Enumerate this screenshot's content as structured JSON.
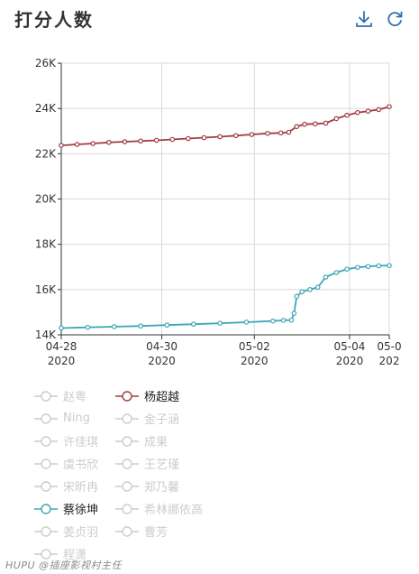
{
  "header": {
    "title": "打分人数",
    "download_icon": "download-icon",
    "refresh_icon": "refresh-icon"
  },
  "chart_data": {
    "type": "line",
    "title": "打分人数",
    "ylim": [
      14000,
      26000
    ],
    "y_ticks": [
      14000,
      16000,
      18000,
      20000,
      22000,
      24000,
      26000
    ],
    "y_tick_labels": [
      "14K",
      "16K",
      "18K",
      "20K",
      "22K",
      "24K",
      "26K"
    ],
    "xlim": [
      0,
      6.2
    ],
    "x_ticks": [
      0,
      1.9,
      3.65,
      5.45,
      6.2
    ],
    "x_tick_labels": [
      {
        "md": "04-28",
        "year": "2020"
      },
      {
        "md": "04-30",
        "year": "2020"
      },
      {
        "md": "05-02",
        "year": "2020"
      },
      {
        "md": "05-04",
        "year": "2020"
      },
      {
        "md": "05-0",
        "year": "202"
      }
    ],
    "grid": true,
    "series": [
      {
        "name": "杨超越",
        "color": "#a23b44",
        "x": [
          0,
          0.3,
          0.6,
          0.9,
          1.2,
          1.5,
          1.8,
          2.1,
          2.4,
          2.7,
          3.0,
          3.3,
          3.6,
          3.9,
          4.15,
          4.3,
          4.45,
          4.6,
          4.8,
          5.0,
          5.2,
          5.4,
          5.6,
          5.8,
          6.0,
          6.2
        ],
        "values": [
          22370,
          22410,
          22450,
          22500,
          22530,
          22560,
          22590,
          22630,
          22670,
          22710,
          22750,
          22800,
          22850,
          22900,
          22920,
          22950,
          23200,
          23300,
          23320,
          23350,
          23550,
          23700,
          23820,
          23880,
          23950,
          24080
        ]
      },
      {
        "name": "蔡徐坤",
        "color": "#3ea7b6",
        "x": [
          0,
          0.5,
          1.0,
          1.5,
          2.0,
          2.5,
          3.0,
          3.5,
          4.0,
          4.2,
          4.35,
          4.4,
          4.45,
          4.55,
          4.7,
          4.85,
          5.0,
          5.2,
          5.4,
          5.6,
          5.8,
          6.0,
          6.2
        ],
        "values": [
          14300,
          14330,
          14360,
          14390,
          14430,
          14470,
          14510,
          14560,
          14610,
          14640,
          14650,
          14950,
          15700,
          15900,
          16000,
          16100,
          16550,
          16750,
          16900,
          16980,
          17020,
          17050,
          17060
        ]
      }
    ],
    "legend_placement": "bottom",
    "legend": [
      {
        "name": "赵粤",
        "active": false
      },
      {
        "name": "杨超越",
        "active": true,
        "color": "#a23b44"
      },
      {
        "name": "Ning",
        "active": false
      },
      {
        "name": "金子涵",
        "active": false
      },
      {
        "name": "许佳琪",
        "active": false
      },
      {
        "name": "成果",
        "active": false
      },
      {
        "name": "虞书欣",
        "active": false
      },
      {
        "name": "王艺瑾",
        "active": false
      },
      {
        "name": "宋昕冉",
        "active": false
      },
      {
        "name": "郑乃馨",
        "active": false
      },
      {
        "name": "蔡徐坤",
        "active": true,
        "color": "#3ea7b6"
      },
      {
        "name": "希林娜依高",
        "active": false
      },
      {
        "name": "姜贞羽",
        "active": false
      },
      {
        "name": "曹芳",
        "active": false
      },
      {
        "name": "程潇",
        "active": false
      }
    ]
  },
  "watermark": "HUPU @插座影视村主任",
  "colors": {
    "grid": "#d9d9d9",
    "axis": "#333333",
    "inactive": "#cccccc"
  }
}
